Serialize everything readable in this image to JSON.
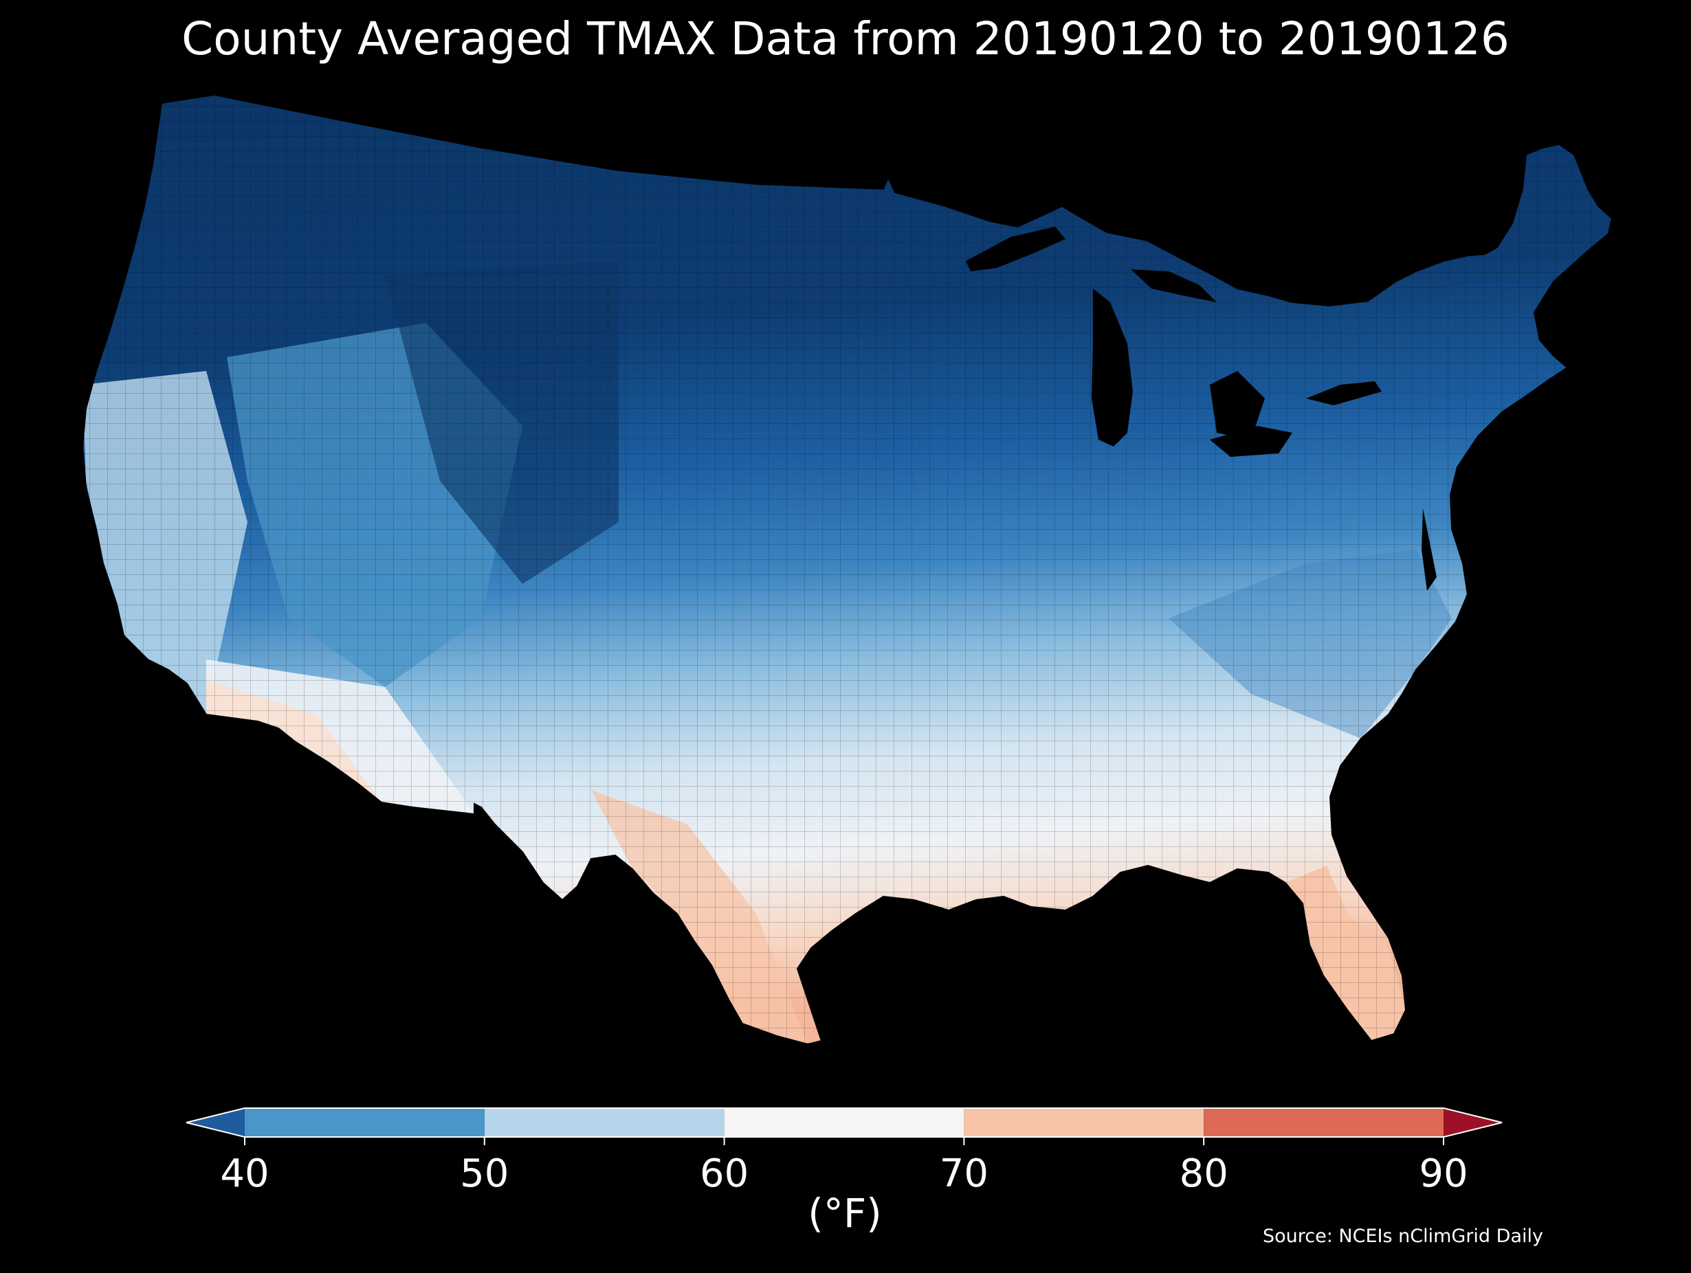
{
  "title": "County Averaged TMAX Data from 20190120 to 20190126",
  "colorbar": {
    "ticks": [
      "40",
      "50",
      "60",
      "70",
      "80",
      "90"
    ],
    "unit": "(°F)",
    "bins": [
      {
        "from": 40,
        "to": 50,
        "color": "#4a96c8"
      },
      {
        "from": 50,
        "to": 60,
        "color": "#b5d5ea"
      },
      {
        "from": 60,
        "to": 70,
        "color": "#f5f5f5"
      },
      {
        "from": 70,
        "to": 80,
        "color": "#f7c4a8"
      },
      {
        "from": 80,
        "to": 90,
        "color": "#dc6a55"
      }
    ],
    "under_color": "#1f5b9e",
    "over_color": "#9c1127"
  },
  "source": "Source: NCEIs nClimGrid Daily",
  "map_colors": {
    "coldest": "#0b3566",
    "cold": "#1c5fa2",
    "cool": "#4a96c8",
    "mild": "#b5d5ea",
    "neutral": "#eef2f6",
    "warm": "#f7c4a8",
    "background": "#000000"
  }
}
